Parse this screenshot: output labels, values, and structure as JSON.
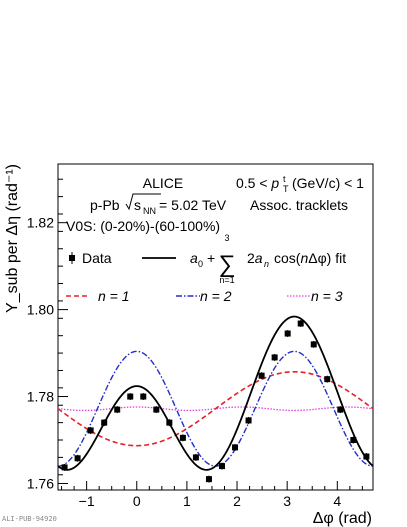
{
  "chart_data": {
    "type": "scatter",
    "xlabel": "Δφ (rad)",
    "ylabel": "Y_sub per Δη (rad⁻¹)",
    "xlim": [
      -1.571,
      4.712
    ],
    "ylim": [
      1.7585,
      1.8335
    ],
    "x_ticks": [
      -1,
      0,
      1,
      2,
      3,
      4
    ],
    "y_ticks": [
      1.76,
      1.78,
      1.8,
      1.82
    ],
    "grid": false,
    "annotations": {
      "experiment": "ALICE",
      "system_prefix": "p-Pb",
      "energy_suffix": "= 5.02 TeV",
      "pt_range": "0.5 < p_T^t (GeV/c) < 1",
      "assoc": "Assoc. tracklets",
      "v0s": "V0S: (0-20%)-(60-100%)"
    },
    "legend": {
      "data_label": "Data",
      "fit_label": "a₀ + Σ 2aₙ cos(nΔφ) fit",
      "fit_sum_upper": "3",
      "fit_sum_lower": "n=1",
      "harmonics_labels": [
        "n = 1",
        "n = 2",
        "n = 3"
      ]
    },
    "series": [
      {
        "name": "Data",
        "x": [
          -1.44,
          -1.18,
          -0.92,
          -0.65,
          -0.39,
          -0.13,
          0.13,
          0.39,
          0.65,
          0.92,
          1.18,
          1.44,
          1.7,
          1.96,
          2.23,
          2.49,
          2.75,
          3.01,
          3.27,
          3.53,
          3.8,
          4.06,
          4.32,
          4.58
        ],
        "y": [
          1.7637,
          1.7658,
          1.7722,
          1.774,
          1.777,
          1.78,
          1.78,
          1.777,
          1.774,
          1.7705,
          1.766,
          1.761,
          1.764,
          1.7683,
          1.7745,
          1.7848,
          1.789,
          1.7945,
          1.7968,
          1.792,
          1.784,
          1.777,
          1.77,
          1.7662
        ],
        "err": [
          0.0008,
          0.0008,
          0.0008,
          0.0008,
          0.0008,
          0.0008,
          0.0008,
          0.0008,
          0.0008,
          0.0008,
          0.0008,
          0.0008,
          0.0008,
          0.0008,
          0.0008,
          0.0008,
          0.0008,
          0.0008,
          0.0008,
          0.0008,
          0.0008,
          0.0008,
          0.0008,
          0.0008
        ]
      },
      {
        "name": "fit",
        "a0": 1.7772,
        "a1": -0.0042,
        "a2": 0.0066,
        "a3": 0.0002
      },
      {
        "name": "n = 1",
        "a0": 1.7772,
        "a": -0.0085,
        "n": 1
      },
      {
        "name": "n = 2",
        "a0": 1.7772,
        "a": 0.0132,
        "n": 2
      },
      {
        "name": "n = 3",
        "a0": 1.7772,
        "a": 0.0004,
        "n": 3
      }
    ],
    "colors": {
      "data": "#000000",
      "fit": "#000000",
      "n1": "#e8202a",
      "n2": "#2330c8",
      "n3": "#e040e0"
    }
  },
  "footer": {
    "publication_id": "ALI-PUB-94920"
  }
}
